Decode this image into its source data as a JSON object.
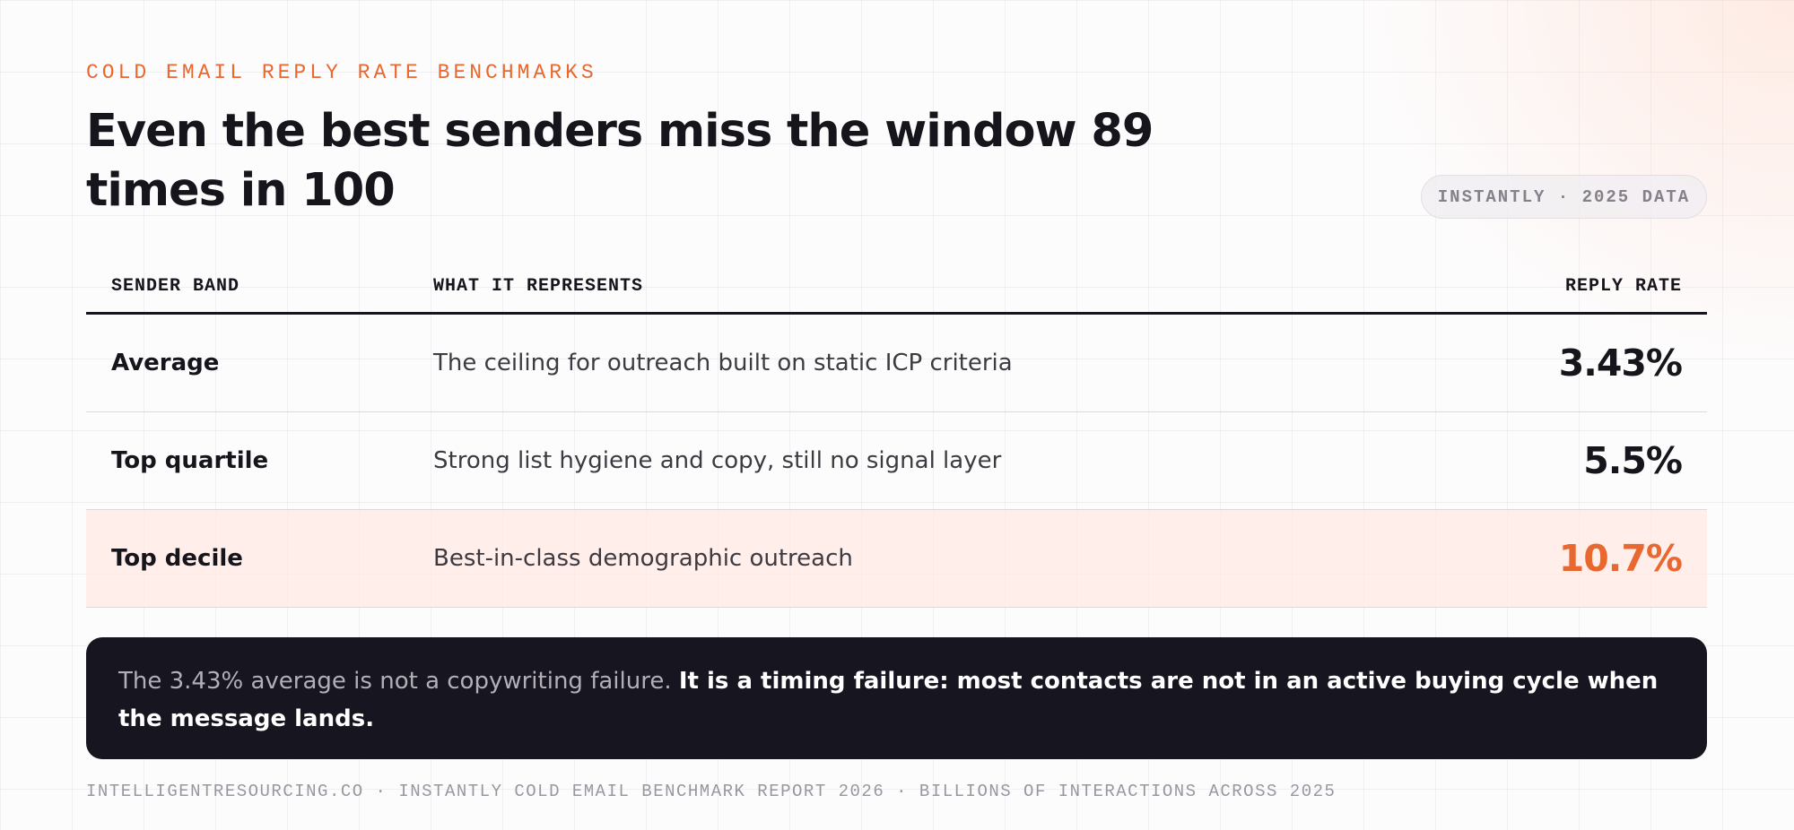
{
  "header": {
    "eyebrow": "COLD EMAIL REPLY RATE BENCHMARKS",
    "title": "Even the best senders miss the window 89 times in 100",
    "badge": "INSTANTLY · 2025 DATA"
  },
  "table": {
    "columns": [
      "SENDER BAND",
      "WHAT IT REPRESENTS",
      "REPLY RATE"
    ],
    "rows": [
      [
        "Average",
        "The ceiling for outreach built on static ICP criteria",
        "3.43%"
      ],
      [
        "Top quartile",
        "Strong list hygiene and copy, still no signal layer",
        "5.5%"
      ],
      [
        "Top decile",
        "Best-in-class demographic outreach",
        "10.7%"
      ]
    ]
  },
  "callout": {
    "lead": "The 3.43% average is not a copywriting failure.",
    "emphasis": "It is a timing failure: most contacts are not in an active buying cycle when the message lands."
  },
  "footer": "INTELLIGENTRESOURCING.CO · INSTANTLY COLD EMAIL BENCHMARK REPORT 2026 · BILLIONS OF INTERACTIONS ACROSS 2025"
}
